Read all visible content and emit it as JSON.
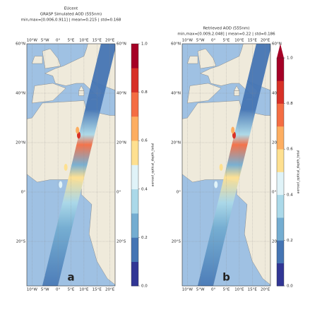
{
  "chart_data": [
    {
      "type": "map",
      "title": "EUcent",
      "subtitle": "GRASP Simulated AOD (555nm)",
      "stats": "min,max=[0.006,0.911] | mean=0.215 | std=0.168",
      "xlim": [
        -12,
        22
      ],
      "ylim": [
        -38,
        60
      ],
      "xticks": [
        {
          "value": -10,
          "label": "10°W"
        },
        {
          "value": -5,
          "label": "5°W"
        },
        {
          "value": 0,
          "label": "0°"
        },
        {
          "value": 5,
          "label": "5°E"
        },
        {
          "value": 10,
          "label": "10°E"
        },
        {
          "value": 15,
          "label": "15°E"
        },
        {
          "value": 20,
          "label": "20°E"
        }
      ],
      "yticks": [
        {
          "value": 60,
          "label": "60°N"
        },
        {
          "value": 40,
          "label": "40°N"
        },
        {
          "value": 20,
          "label": "20°N"
        },
        {
          "value": 0,
          "label": "0°"
        },
        {
          "value": -20,
          "label": "20°S"
        }
      ],
      "colorbar": {
        "label": "aerosol_optical_depth_total",
        "lim": [
          0,
          1
        ],
        "extend_max": false,
        "ticks": [
          {
            "value": 0,
            "label": "0.0"
          },
          {
            "value": 0.2,
            "label": "0.2"
          },
          {
            "value": 0.4,
            "label": "0.4"
          },
          {
            "value": 0.6,
            "label": "0.6"
          },
          {
            "value": 0.8,
            "label": "0.8"
          },
          {
            "value": 1,
            "label": "1.0"
          }
        ],
        "colors": [
          "#313695",
          "#4575b4",
          "#74add1",
          "#abd9e9",
          "#e0f3f8",
          "#fee090",
          "#fdae61",
          "#f46d43",
          "#d73027",
          "#a50026"
        ]
      },
      "panel_label": "a"
    },
    {
      "type": "map",
      "title": "Retrieved AOD (555nm)",
      "stats": "min,max=[0.009,2.048] | mean=0.22 | std=0.186",
      "xlim": [
        -12,
        22
      ],
      "ylim": [
        -38,
        60
      ],
      "xticks": [
        {
          "value": -10,
          "label": "10°W"
        },
        {
          "value": -5,
          "label": "5°W"
        },
        {
          "value": 0,
          "label": "0°"
        },
        {
          "value": 5,
          "label": "5°E"
        },
        {
          "value": 10,
          "label": "10°E"
        },
        {
          "value": 15,
          "label": "15°E"
        },
        {
          "value": 20,
          "label": "20°E"
        }
      ],
      "yticks": [
        {
          "value": 60,
          "label": "60°N"
        },
        {
          "value": 40,
          "label": "40°N"
        },
        {
          "value": 20,
          "label": "20°N"
        },
        {
          "value": 0,
          "label": "0°"
        },
        {
          "value": -20,
          "label": "20°S"
        }
      ],
      "colorbar": {
        "label": "aerosol_optical_depth_total",
        "lim": [
          0,
          1
        ],
        "extend_max": true,
        "ticks": [
          {
            "value": 0,
            "label": "0.0"
          },
          {
            "value": 0.2,
            "label": "0.2"
          },
          {
            "value": 0.4,
            "label": "0.4"
          },
          {
            "value": 0.6,
            "label": "0.6"
          },
          {
            "value": 0.8,
            "label": "0.8"
          },
          {
            "value": 1,
            "label": "1.0"
          }
        ],
        "colors": [
          "#313695",
          "#4575b4",
          "#74add1",
          "#abd9e9",
          "#e0f3f8",
          "#fee090",
          "#fdae61",
          "#f46d43",
          "#d73027",
          "#a50026"
        ]
      },
      "panel_label": "b"
    }
  ]
}
